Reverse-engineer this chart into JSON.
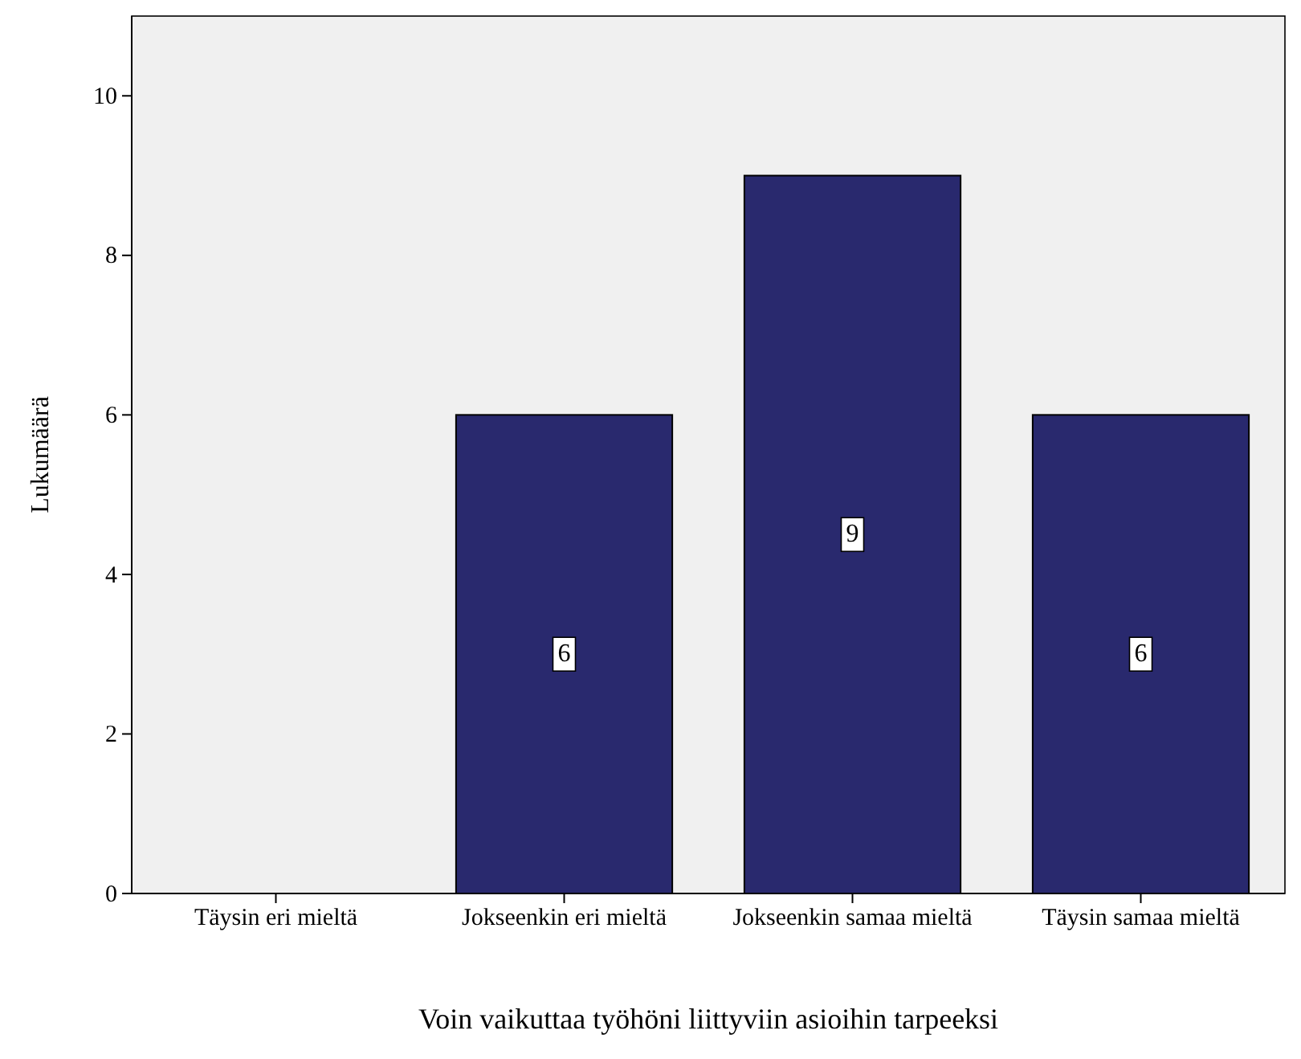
{
  "chart_data": {
    "type": "bar",
    "xlabel": "Voin vaikuttaa työhöni liittyviin asioihin tarpeeksi",
    "ylabel": "Lukumäärä",
    "categories": [
      "Täysin eri mieltä",
      "Jokseenkin eri mieltä",
      "Jokseenkin samaa mieltä",
      "Täysin samaa mieltä"
    ],
    "values": [
      0,
      6,
      9,
      6
    ],
    "value_labels": [
      null,
      "6",
      "9",
      "6"
    ],
    "color": "#29296e",
    "ylim": [
      0,
      11
    ],
    "yticks": [
      0,
      2,
      4,
      6,
      8,
      10
    ],
    "grid": false
  }
}
